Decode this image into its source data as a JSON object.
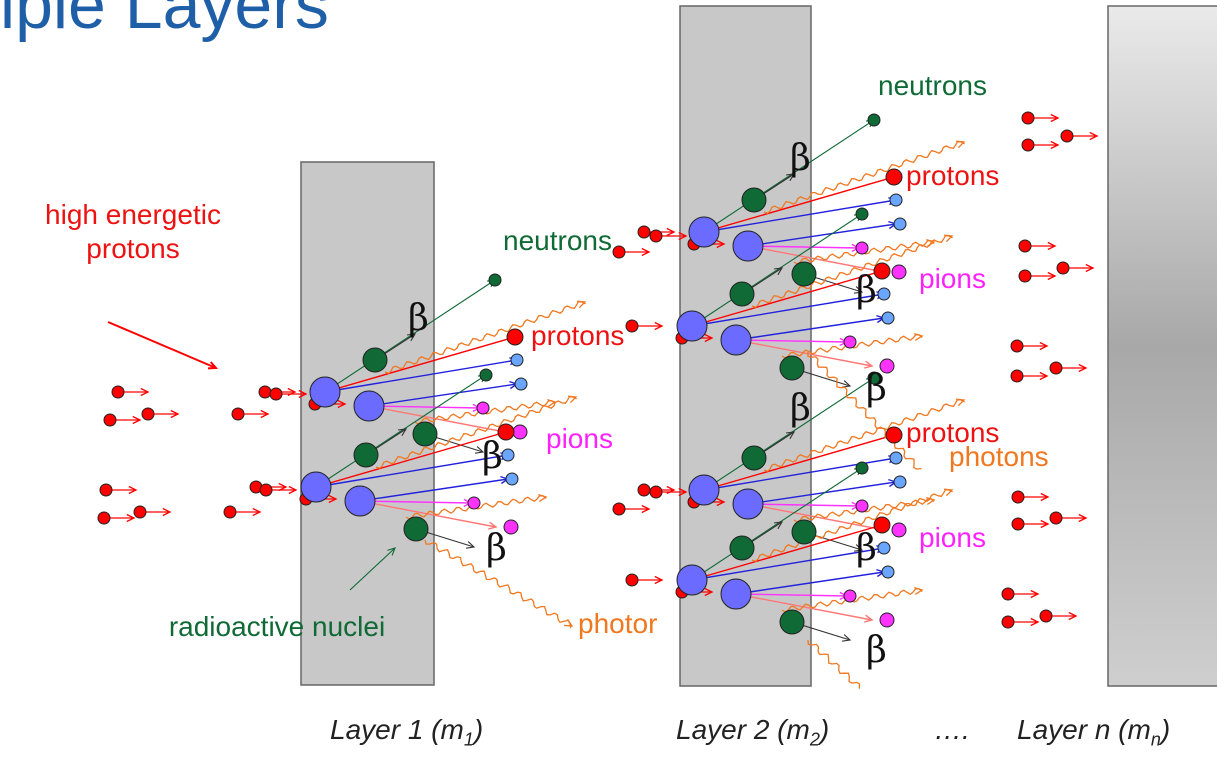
{
  "title": "iple Layers",
  "labels": {
    "high_energetic": "high energetic",
    "protons_incoming": "protons",
    "radioactive_nuclei": "radioactive nuclei",
    "neutrons": "neutrons",
    "protons": "protons",
    "pions": "pions",
    "photons": "photons",
    "photons_cut": "photor",
    "beta": "β"
  },
  "layers": [
    {
      "name": "Layer 1 (m",
      "sub": "1",
      "close": ")"
    },
    {
      "name": "Layer 2 (m",
      "sub": "2",
      "close": ")"
    },
    {
      "ellipsis": "….",
      "name": "Layer n (m",
      "sub": "n",
      "close": ")"
    }
  ],
  "colors": {
    "title": "#1f5fa8",
    "layer_fill": "#c8c8c8",
    "proton": "#ff0000",
    "nucleus": "#6b6bff",
    "neutron": "#0f6a36",
    "pion": "#ff33ff",
    "light": "#6aa6ff",
    "photon": "#f07820",
    "electron": "#333333"
  }
}
